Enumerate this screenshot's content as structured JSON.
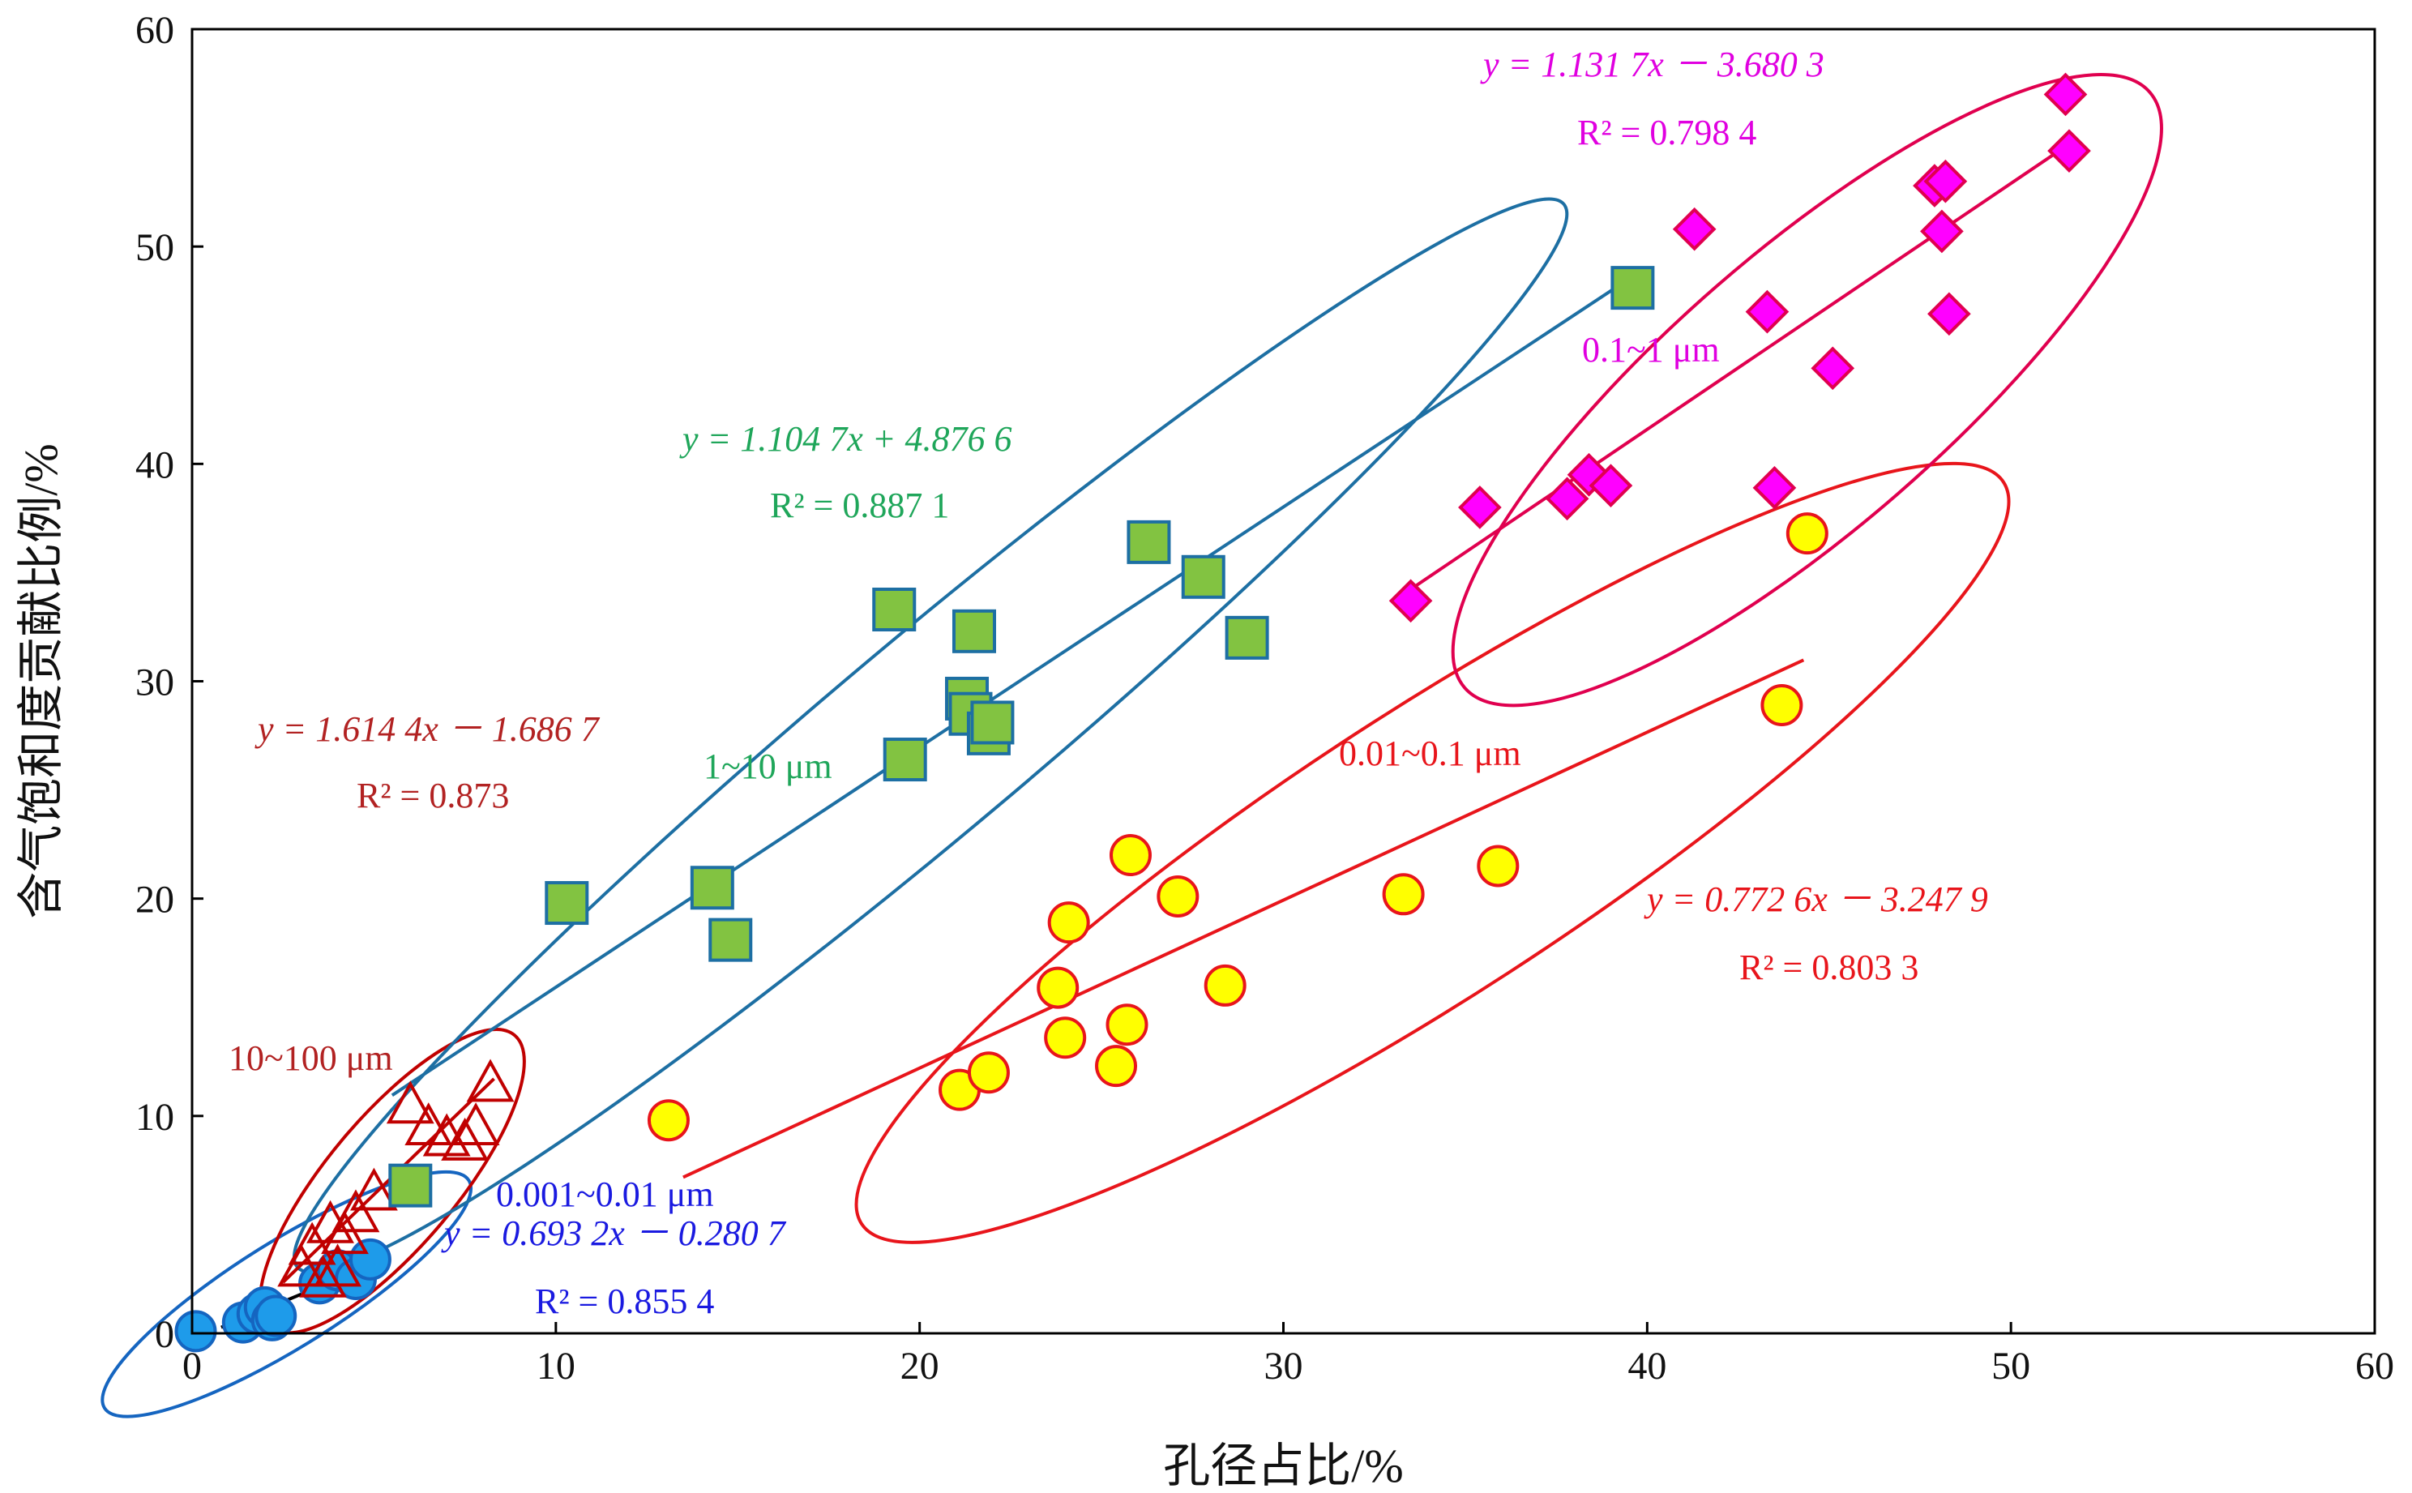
{
  "chart_data": {
    "type": "scatter",
    "xlabel": "孔径占比/%",
    "ylabel": "含气饱和度贡献比例/%",
    "xlim": [
      0,
      60
    ],
    "ylim": [
      0,
      60
    ],
    "xticks": [
      "0",
      "10",
      "20",
      "30",
      "40",
      "50",
      "60"
    ],
    "yticks": [
      "0",
      "10",
      "20",
      "30",
      "40",
      "50",
      "60"
    ],
    "grid": false,
    "series": [
      {
        "name": "0.001~0.01 μm",
        "marker": "circle",
        "color": "#1565C0",
        "fill": "#1E9BEA",
        "x": [
          0.1,
          1.4,
          1.8,
          2.0,
          2.2,
          2.3,
          3.5,
          4.0,
          4.5,
          4.9
        ],
        "y": [
          0.1,
          0.5,
          0.9,
          1.2,
          0.6,
          0.8,
          2.3,
          2.9,
          2.5,
          3.4
        ],
        "fit": {
          "slope": 0.6932,
          "intercept": -0.2807,
          "x_range": [
            0.8,
            5.0
          ]
        },
        "equation": "y = 0.693 2x － 0.280 7",
        "r2": "R² = 0.855 4",
        "ellipse": {
          "cx": 2.6,
          "cy": 1.8,
          "angle_deg": 32
        }
      },
      {
        "name": "10~100 μm",
        "marker": "triangle",
        "color": "#C00000",
        "x": [
          3.0,
          3.3,
          3.6,
          3.8,
          4.0,
          4.2,
          4.5,
          5.0,
          6.0,
          6.5,
          7.0,
          7.5,
          7.8,
          8.2
        ],
        "y": [
          3.0,
          4.0,
          2.5,
          5.0,
          3.0,
          4.5,
          5.5,
          6.5,
          10.5,
          9.5,
          9.0,
          8.8,
          9.5,
          11.5
        ],
        "fit": {
          "slope": 1.6144,
          "intercept": -1.6867,
          "x_range": [
            2.5,
            8.3
          ]
        },
        "equation": "y = 1.614 4x － 1.686 7",
        "r2": "R² = 0.873",
        "ellipse": {
          "cx": 5.5,
          "cy": 7.0,
          "angle_deg": 50
        }
      },
      {
        "name": "1~10 μm",
        "marker": "square",
        "color": "#1D6FA3",
        "fill": "#82C341",
        "x": [
          6.0,
          10.3,
          14.3,
          14.8,
          19.3,
          19.6,
          21.3,
          21.4,
          21.5,
          21.9,
          22.0,
          26.3,
          27.8,
          29.0,
          39.6
        ],
        "y": [
          6.8,
          19.8,
          20.5,
          18.1,
          33.3,
          26.4,
          29.2,
          28.5,
          32.3,
          27.6,
          28.1,
          36.4,
          34.8,
          32.0,
          48.1
        ],
        "fit": {
          "slope": 1.1047,
          "intercept": 4.8766,
          "x_range": [
            5.5,
            39.6
          ]
        },
        "equation": "y = 1.104 7x + 4.876 6",
        "r2": "R² = 0.887 1",
        "ellipse": {
          "cx": 20.3,
          "cy": 27.5,
          "angle_deg": 40
        }
      },
      {
        "name": "0.01~0.1 μm",
        "marker": "circle",
        "color": "#E8151B",
        "fill": "#FFFF00",
        "x": [
          13.1,
          21.1,
          21.9,
          23.8,
          24.0,
          24.1,
          25.4,
          25.7,
          25.8,
          27.1,
          28.4,
          33.3,
          35.9,
          43.7,
          44.4
        ],
        "y": [
          9.8,
          11.2,
          12.0,
          15.9,
          13.6,
          18.9,
          12.3,
          14.2,
          22.0,
          20.1,
          16.0,
          20.2,
          21.5,
          28.9,
          36.8
        ],
        "fit": {
          "slope": 0.7726,
          "intercept": -3.2479,
          "x_range": [
            13.5,
            44.3
          ]
        },
        "equation": "y = 0.772 6x － 3.247 9",
        "r2": "R² = 0.803 3",
        "ellipse": {
          "cx": 34.1,
          "cy": 22.1,
          "angle_deg": 33
        }
      },
      {
        "name": "0.1~1 μm",
        "marker": "diamond",
        "color": "#E0004F",
        "fill": "#FF00FF",
        "x": [
          33.5,
          35.4,
          37.8,
          38.4,
          39.0,
          41.3,
          43.3,
          43.5,
          45.1,
          47.9,
          48.1,
          48.2,
          48.3,
          51.5,
          51.6
        ],
        "y": [
          33.7,
          38.0,
          38.4,
          39.5,
          39.0,
          50.8,
          47.0,
          38.9,
          44.4,
          52.8,
          50.7,
          53.0,
          46.9,
          57.0,
          54.4
        ],
        "fit": {
          "slope": 1.1317,
          "intercept": -3.6803,
          "x_range": [
            33.5,
            51.6
          ]
        },
        "equation": "y = 1.131 7x － 3.680 3",
        "r2": "R² = 0.798 4",
        "ellipse": {
          "cx": 44.4,
          "cy": 43.4,
          "angle_deg": 41
        }
      }
    ]
  }
}
